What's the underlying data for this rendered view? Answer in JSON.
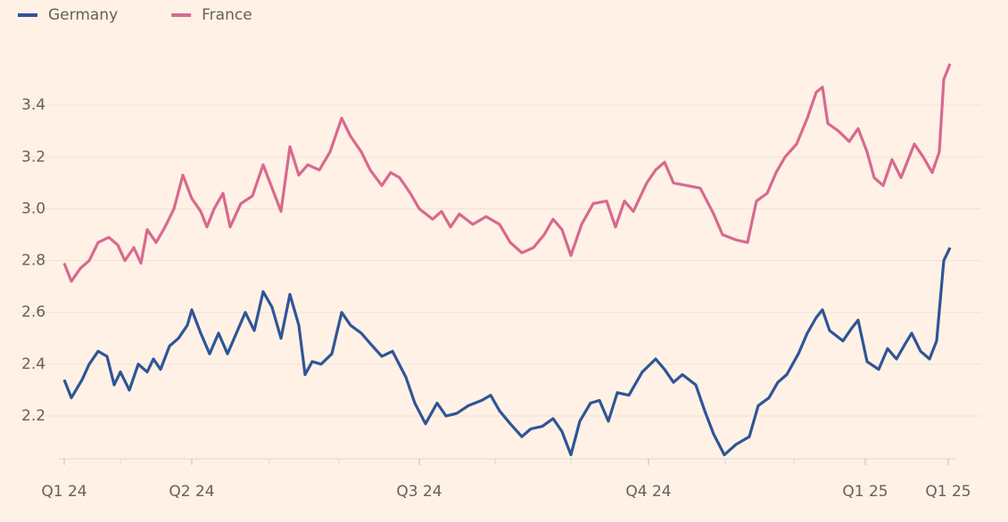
{
  "chart_data": {
    "type": "line",
    "legend": "top-left",
    "grid": true,
    "xlim": [
      0,
      99.3
    ],
    "xticks": [
      {
        "value": 0,
        "label": "Q1 24"
      },
      {
        "value": 14.3,
        "label": "Q2 24"
      },
      {
        "value": 39.8,
        "label": "Q3 24"
      },
      {
        "value": 65.5,
        "label": "Q4 24"
      },
      {
        "value": 89.8,
        "label": "Q1 25"
      },
      {
        "value": 99.1,
        "label": "Q1 25"
      }
    ],
    "ylim": [
      2.04,
      3.6
    ],
    "yticks": [
      2.2,
      2.4,
      2.6,
      2.8,
      {
        "value": 3,
        "label": "3.0"
      },
      3.2,
      3.4
    ],
    "series": [
      {
        "name": "Germany",
        "color": "#2e5597",
        "x": [
          0,
          0.8,
          2,
          2.8,
          3.8,
          4.8,
          5.6,
          6.3,
          7.3,
          8.3,
          9.3,
          10,
          10.8,
          11.8,
          12.8,
          13.8,
          14.3,
          15.3,
          16.3,
          17.3,
          18.3,
          19.3,
          20.3,
          21.3,
          22.3,
          23.3,
          24.3,
          25.3,
          26.3,
          27,
          27.8,
          28.8,
          30,
          31.1,
          32.1,
          33.3,
          34.3,
          35.6,
          36.8,
          38.3,
          39.3,
          40.5,
          41.8,
          42.8,
          44,
          45.3,
          46.8,
          47.8,
          48.8,
          50,
          51.3,
          52.3,
          53.6,
          54.8,
          55.8,
          56.8,
          57.8,
          59,
          60,
          61,
          62,
          63.3,
          64.8,
          66.3,
          67.3,
          68.3,
          69.3,
          70.8,
          71.8,
          72.8,
          74,
          75.3,
          76.8,
          77.8,
          79,
          80,
          81,
          82.3,
          83.3,
          84.3,
          85,
          85.8,
          87.3,
          88.3,
          89,
          90,
          91.3,
          92.3,
          93.3,
          94.3,
          95,
          96,
          97,
          97.8,
          98.6,
          99.3
        ],
        "values": [
          2.34,
          2.27,
          2.34,
          2.4,
          2.45,
          2.43,
          2.32,
          2.37,
          2.3,
          2.4,
          2.37,
          2.42,
          2.38,
          2.47,
          2.5,
          2.55,
          2.61,
          2.52,
          2.44,
          2.52,
          2.44,
          2.52,
          2.6,
          2.53,
          2.68,
          2.62,
          2.5,
          2.67,
          2.55,
          2.36,
          2.41,
          2.4,
          2.44,
          2.6,
          2.55,
          2.52,
          2.48,
          2.43,
          2.45,
          2.35,
          2.25,
          2.17,
          2.25,
          2.2,
          2.21,
          2.24,
          2.26,
          2.28,
          2.22,
          2.17,
          2.12,
          2.15,
          2.16,
          2.19,
          2.14,
          2.05,
          2.18,
          2.25,
          2.26,
          2.18,
          2.29,
          2.28,
          2.37,
          2.42,
          2.38,
          2.33,
          2.36,
          2.32,
          2.22,
          2.13,
          2.05,
          2.09,
          2.12,
          2.24,
          2.27,
          2.33,
          2.36,
          2.44,
          2.52,
          2.58,
          2.61,
          2.53,
          2.49,
          2.54,
          2.57,
          2.41,
          2.38,
          2.46,
          2.42,
          2.48,
          2.52,
          2.45,
          2.42,
          2.49,
          2.8,
          2.85
        ]
      },
      {
        "name": "France",
        "color": "#d8698f",
        "x": [
          0,
          0.8,
          1.8,
          2.8,
          3.8,
          5,
          6,
          6.8,
          7.8,
          8.6,
          9.3,
          10.3,
          11.3,
          12.3,
          13.3,
          14.3,
          15.3,
          16,
          16.8,
          17.8,
          18.6,
          19.8,
          21.1,
          22.3,
          23.3,
          24.3,
          25.3,
          26.3,
          27.3,
          28.6,
          29.8,
          31.1,
          32.1,
          33.3,
          34.3,
          35.6,
          36.6,
          37.6,
          38.8,
          39.8,
          41.3,
          42.3,
          43.3,
          44.3,
          45.8,
          47.3,
          48.8,
          50,
          51.3,
          52.6,
          53.8,
          54.8,
          55.8,
          56.8,
          58,
          59.3,
          60.8,
          61.8,
          62.8,
          63.8,
          65.3,
          66.3,
          67.3,
          68.3,
          69.8,
          71.3,
          72.8,
          73.8,
          75.3,
          76.6,
          77.6,
          78.8,
          79.8,
          80.8,
          82.1,
          83.3,
          84.3,
          85,
          85.6,
          86.8,
          88,
          89,
          90,
          90.8,
          91.8,
          92.8,
          93.8,
          95.3,
          96.3,
          97.3,
          98.1,
          98.6,
          99.3
        ],
        "values": [
          2.79,
          2.72,
          2.77,
          2.8,
          2.87,
          2.89,
          2.86,
          2.8,
          2.85,
          2.79,
          2.92,
          2.87,
          2.93,
          3.0,
          3.13,
          3.04,
          2.99,
          2.93,
          3.0,
          3.06,
          2.93,
          3.02,
          3.05,
          3.17,
          3.08,
          2.99,
          3.24,
          3.13,
          3.17,
          3.15,
          3.22,
          3.35,
          3.28,
          3.22,
          3.15,
          3.09,
          3.14,
          3.12,
          3.06,
          3.0,
          2.96,
          2.99,
          2.93,
          2.98,
          2.94,
          2.97,
          2.94,
          2.87,
          2.83,
          2.85,
          2.9,
          2.96,
          2.92,
          2.82,
          2.94,
          3.02,
          3.03,
          2.93,
          3.03,
          2.99,
          3.1,
          3.15,
          3.18,
          3.1,
          3.09,
          3.08,
          2.98,
          2.9,
          2.88,
          2.87,
          3.03,
          3.06,
          3.14,
          3.2,
          3.25,
          3.35,
          3.45,
          3.47,
          3.33,
          3.3,
          3.26,
          3.31,
          3.22,
          3.12,
          3.09,
          3.19,
          3.12,
          3.25,
          3.2,
          3.14,
          3.22,
          3.5,
          3.56
        ]
      }
    ]
  }
}
